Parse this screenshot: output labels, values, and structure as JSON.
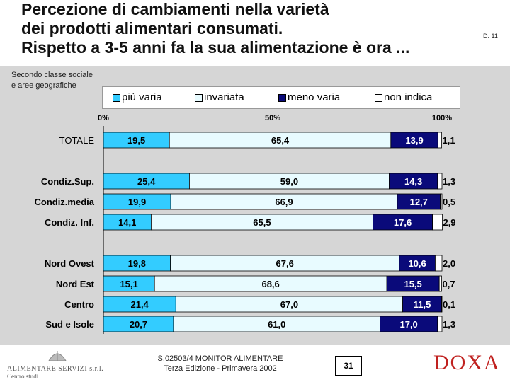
{
  "header": {
    "title_lines": [
      "Percezione di cambiamenti nella varietà",
      "dei prodotti alimentari consumati.",
      "Rispetto a 3-5 anni fa la sua alimentazione è ora ..."
    ],
    "page_code": "D. 11"
  },
  "subtitle_lines": [
    "Secondo classe sociale",
    "e aree geografiche"
  ],
  "colors": {
    "piu_varia": "#33ccff",
    "invariata": "#e8fbff",
    "meno_varia": "#0a0a7a",
    "non_indica": "#ffffff",
    "band": "#d6d6d6"
  },
  "chart_data": {
    "type": "bar",
    "orientation": "horizontal",
    "stacked": true,
    "axis_ticks": [
      "0%",
      "50%",
      "100%"
    ],
    "xlim": [
      0,
      100
    ],
    "legend_placement": "top",
    "categories": [
      "TOTALE",
      "Condiz.Sup.",
      "Condiz.media",
      "Condiz. Inf.",
      "Nord Ovest",
      "Nord Est",
      "Centro",
      "Sud e Isole"
    ],
    "series": [
      {
        "name": "più varia",
        "values": [
          19.5,
          25.4,
          19.9,
          14.1,
          19.8,
          15.1,
          21.4,
          20.7
        ],
        "labels": [
          "19,5",
          "25,4",
          "19,9",
          "14,1",
          "19,8",
          "15,1",
          "21,4",
          "20,7"
        ]
      },
      {
        "name": "invariata",
        "values": [
          65.4,
          59.0,
          66.9,
          65.5,
          67.6,
          68.6,
          67.0,
          61.0
        ],
        "labels": [
          "65,4",
          "59,0",
          "66,9",
          "65,5",
          "67,6",
          "68,6",
          "67,0",
          "61,0"
        ]
      },
      {
        "name": "meno varia",
        "values": [
          13.9,
          14.3,
          12.7,
          17.6,
          10.6,
          15.5,
          11.5,
          17.0
        ],
        "labels": [
          "13,9",
          "14,3",
          "12,7",
          "17,6",
          "10,6",
          "15,5",
          "11,5",
          "17,0"
        ]
      },
      {
        "name": "non indica",
        "values": [
          1.1,
          1.3,
          0.5,
          2.9,
          2.0,
          0.7,
          0.1,
          1.3
        ],
        "labels": [
          "1,1",
          "1,3",
          "0,5",
          "2,9",
          "2,0",
          "0,7",
          "0,1",
          "1,3"
        ]
      }
    ]
  },
  "footer": {
    "company_name": "ALIMENTARE SERVIZI s.r.l.",
    "company_sub": "Centro studi",
    "note_lines": [
      "S.02503/4 MONITOR ALIMENTARE",
      "Terza Edizione - Primavera 2002"
    ],
    "page_number": "31",
    "brand": "DOXA"
  }
}
